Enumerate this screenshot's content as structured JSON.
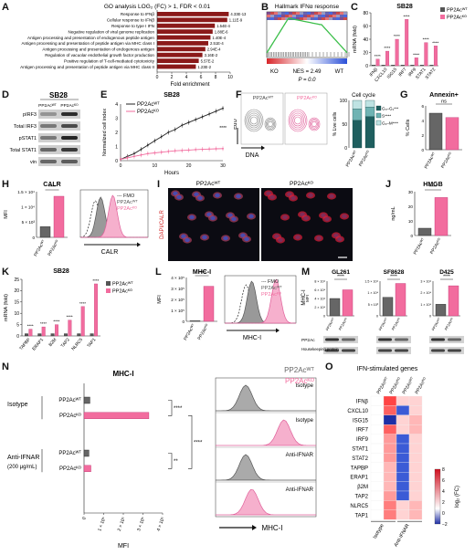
{
  "panels": {
    "A": {
      "letter": "A",
      "title": "GO analysis LOG₂ (FC) > 1, FDR < 0.01",
      "xlabel": "Fold enrichment",
      "xticks": [
        "0",
        "2",
        "4",
        "6",
        "8",
        "10"
      ],
      "terms": [
        {
          "label": "Response to IFNβ",
          "fdr": "4.33E-13",
          "value": 9.8
        },
        {
          "label": "Cellular response to IFNβ",
          "fdr": "1.11E-9",
          "value": 9.6
        },
        {
          "label": "Response to type I IFN",
          "fdr": "1.54E-4",
          "value": 7.9
        },
        {
          "label": "Negative regulation of viral genome replication",
          "fdr": "1.88E-6",
          "value": 7.6
        },
        {
          "label": "Antigen processing and presentation of endogenous peptide antigen",
          "fdr": "1.40E-4",
          "value": 7.3
        },
        {
          "label": "Antigen processing and presentation of peptide antigen via MHC class I",
          "fdr": "2.51E-4",
          "value": 7.0
        },
        {
          "label": "Antigen processing and presentation of endogenous antigen",
          "fdr": "2.94E-4",
          "value": 6.6
        },
        {
          "label": "Regulation of vacuolar endothelial growth factor production",
          "fdr": "3.16E-2",
          "value": 6.2
        },
        {
          "label": "Positive regulation of T-cell-mediated cytotoxicity",
          "fdr": "5.57E-2",
          "value": 5.7
        },
        {
          "label": "Antigen processing and presentation of peptide antigen via MHC class II",
          "fdr": "1.23E-2",
          "value": 5.3
        }
      ]
    },
    "B": {
      "letter": "B",
      "title": "Hallmark IFNα response",
      "left": "KO",
      "right": "WT",
      "nes": "NES = 2.49",
      "p": "P = 0.0"
    },
    "C": {
      "letter": "C",
      "title": "SB28",
      "ylabel": "mRNA (fold)",
      "yticks": [
        "0",
        "20",
        "40",
        "60",
        "80"
      ],
      "genes": [
        "IFNβ",
        "CXCL10",
        "ISG15",
        "IRF7",
        "IRF9",
        "STAT1",
        "STAT2"
      ],
      "wt": [
        1,
        1,
        1,
        1,
        1,
        1,
        1
      ],
      "ko": [
        10,
        22,
        40,
        70,
        12,
        35,
        30
      ],
      "sig": "****",
      "legend": {
        "wt": "PP2Acᵂᵀ",
        "ko": "PP2Acᴷᴼ"
      }
    },
    "D": {
      "letter": "D",
      "title": "SB28",
      "cols": [
        "PP2Acᵂᵀ",
        "PP2Acᴷᴼ"
      ],
      "rows": [
        "pIRF3",
        "Total IRF3",
        "pSTAT1",
        "Total STAT1",
        "vin"
      ]
    },
    "E": {
      "letter": "E",
      "title": "SB28",
      "xlabel": "Hours",
      "ylabel": "Normalized cell index",
      "xticks": [
        "0",
        "10",
        "20",
        "30"
      ],
      "yticks": [
        "0",
        "1",
        "2",
        "3",
        "4"
      ],
      "series": [
        {
          "name": "PP2Acᵂᵀ",
          "x": [
            0,
            2,
            4,
            6,
            8,
            10,
            12,
            14,
            16,
            18,
            20,
            22,
            24,
            26,
            28,
            30
          ],
          "y": [
            0.1,
            0.3,
            0.5,
            0.8,
            1.1,
            1.4,
            1.7,
            2.0,
            2.2,
            2.5,
            2.7,
            2.9,
            3.1,
            3.3,
            3.5,
            3.7
          ]
        },
        {
          "name": "PP2Acᴷᴼ",
          "x": [
            0,
            2,
            4,
            6,
            8,
            10,
            12,
            14,
            16,
            18,
            20,
            22,
            24,
            26,
            28,
            30
          ],
          "y": [
            0.1,
            0.2,
            0.3,
            0.4,
            0.5,
            0.55,
            0.6,
            0.65,
            0.7,
            0.72,
            0.75,
            0.78,
            0.8,
            0.82,
            0.84,
            0.85
          ]
        }
      ],
      "sig": "****"
    },
    "F": {
      "letter": "F",
      "plot1": "PP2Acᵂᵀ",
      "plot2": "PP2Acᴷᴼ",
      "xlabel": "DNA",
      "ylabel": "EdU",
      "cc_title": "Cell cycle",
      "cc_ylabel": "% Live cells",
      "cc_yticks": [
        "0",
        "50",
        "100"
      ],
      "legend": [
        "G₀–G₁****",
        "S****",
        "G₂–M****"
      ],
      "stack_wt": [
        58,
        24,
        18
      ],
      "stack_ko": [
        66,
        20,
        14
      ],
      "cols": [
        "PP2Acᵂᵀ",
        "PP2Acᴷᴼ"
      ]
    },
    "G": {
      "letter": "G",
      "title": "Annexin+",
      "ylabel": "% Cells",
      "yticks": [
        "0",
        "2",
        "4",
        "6"
      ],
      "values": [
        5.0,
        4.4
      ],
      "cols": [
        "PP2Acᵂᵀ",
        "PP2Acᴷᴼ"
      ],
      "sig": "ns"
    },
    "H": {
      "letter": "H",
      "title": "CALR",
      "ylabel": "MFI",
      "yticks": [
        "0",
        "5 × 10³",
        "1 × 10⁴",
        "1.5 × 10⁴"
      ],
      "values": [
        3500,
        13500
      ],
      "cols": [
        "PP2Acᵂᵀ",
        "PP2Acᴷᴼ"
      ],
      "sig": "****",
      "hist_xlabel": "CALR",
      "legend": [
        "FMO",
        "PP2Acᵂᵀ",
        "PP2Acᴷᴼ"
      ]
    },
    "I": {
      "letter": "I",
      "img1": "PP2Acᵂᵀ",
      "img2": "PP2Acᴷᴼ",
      "side": "DAPI/CALR"
    },
    "J": {
      "letter": "J",
      "title": "HMGB",
      "ylabel": "ng/mL",
      "yticks": [
        "0",
        "10",
        "20",
        "30"
      ],
      "values": [
        5,
        26
      ],
      "cols": [
        "PP2Acᵂᵀ",
        "PP2Acᴷᴼ"
      ],
      "sig": "****"
    },
    "K": {
      "letter": "K",
      "title": "SB28",
      "ylabel": "mRNA (fold)",
      "yticks": [
        "0",
        "5",
        "10",
        "15",
        "20",
        "25"
      ],
      "genes": [
        "TAPBP",
        "ERAP1",
        "B2M",
        "TAP2",
        "NLRC5",
        "TAP1"
      ],
      "wt": [
        1,
        1,
        1,
        1,
        1,
        1
      ],
      "ko": [
        3,
        4,
        5,
        7,
        13,
        23
      ],
      "sig": "****",
      "legend": {
        "wt": "PP2Acᵂᵀ",
        "ko": "PP2Acᴷᴼ"
      }
    },
    "L": {
      "letter": "L",
      "title": "MHC-I",
      "ylabel": "MFI",
      "yticks": [
        "0",
        "1 × 10⁵",
        "2 × 10⁵",
        "3 × 10⁵",
        "4 × 10⁵"
      ],
      "values": [
        5000,
        320000
      ],
      "cols": [
        "PP2Acᵂᵀ",
        "PP2Acᴷᴼ"
      ],
      "sig": "****",
      "hist_xlabel": "MHC-I",
      "legend": [
        "FMO",
        "PP2Acᵂᵀ",
        "PP2Acᴷᴼ"
      ]
    },
    "M": {
      "letter": "M",
      "ylabel": "MHC-I",
      "mfi": "MFI",
      "cells": [
        {
          "name": "GL261",
          "yticks": [
            "0",
            "2 × 10⁴",
            "4 × 10⁴",
            "6 × 10⁴",
            "8 × 10⁴"
          ],
          "values": [
            40000,
            60000
          ]
        },
        {
          "name": "SF8628",
          "yticks": [
            "0",
            "5 × 10³",
            "1 × 10⁴",
            "1.5 × 10⁴"
          ],
          "values": [
            8000,
            14000
          ]
        },
        {
          "name": "D425",
          "yticks": [
            "0",
            "1 × 10⁴",
            "2 × 10⁴",
            "3 × 10⁴"
          ],
          "values": [
            10000,
            26000
          ]
        }
      ],
      "cols": [
        "PP2Acᵂᵀ",
        "PP2Acᴷᴼ"
      ],
      "sig": "****",
      "blot1": "PP2Ac",
      "blot2": "Housekeeping protein"
    },
    "N": {
      "letter": "N",
      "title": "MHC-I",
      "xlabel": "MFI",
      "xticks": [
        "0",
        "1 × 10⁵",
        "2 × 10⁵",
        "3 × 10⁵",
        "4 × 10⁵"
      ],
      "groups": [
        {
          "name": "Isotype",
          "rows": [
            "PP2Acᵂᵀ",
            "PP2Acᴷᴼ"
          ],
          "values": [
            30000,
            330000
          ]
        },
        {
          "name": "Anti-IFNAR",
          "sub": "(200 μg/mL)",
          "rows": [
            "PP2Acᵂᵀ",
            "PP2Acᴷᴼ"
          ],
          "values": [
            25000,
            35000
          ]
        }
      ],
      "sig1": "****",
      "sig2": "**",
      "sig3": "****",
      "hist_labels": [
        "Isotype",
        "Isotype",
        "Anti-IFNAR",
        "Anti-IFNAR"
      ],
      "hist_legend": [
        "PP2Acᵂᵀ",
        "PP2Acᴷᴼ"
      ],
      "hist_xlabel": "MHC-I"
    },
    "O": {
      "letter": "O",
      "title": "IFN-stimulated genes",
      "cols": [
        "PP2Acᵂᵀ",
        "PP2Acᴷᴼ",
        "PP2Acᵂᵀ",
        "PP2Acᴷᴼ"
      ],
      "groups": [
        "Isotype",
        "Anti-IFNAR"
      ],
      "genes": [
        "IFNβ",
        "CXCL10",
        "ISG15",
        "IRF7",
        "IRF9",
        "STAT1",
        "STAT2",
        "TAPBP",
        "ERAP1",
        "β2M",
        "TAP2",
        "NLRC5",
        "TAP1"
      ],
      "matrix": [
        [
          0,
          6,
          1,
          1
        ],
        [
          0,
          5,
          0,
          1
        ],
        [
          0,
          8,
          1,
          2
        ],
        [
          0,
          5,
          1,
          2
        ],
        [
          0,
          3,
          0,
          1
        ],
        [
          0,
          3,
          0,
          1
        ],
        [
          0,
          3,
          0,
          1
        ],
        [
          0,
          2,
          0,
          1
        ],
        [
          0,
          2,
          0,
          1
        ],
        [
          0,
          2,
          0,
          1
        ],
        [
          0,
          3,
          0,
          1
        ],
        [
          0,
          4,
          1,
          2
        ],
        [
          0,
          4,
          1,
          2
        ]
      ],
      "scale_label": "log₂ (FC)",
      "scale_ticks": [
        "8",
        "6",
        "4",
        "2",
        "0",
        "−2"
      ]
    }
  }
}
